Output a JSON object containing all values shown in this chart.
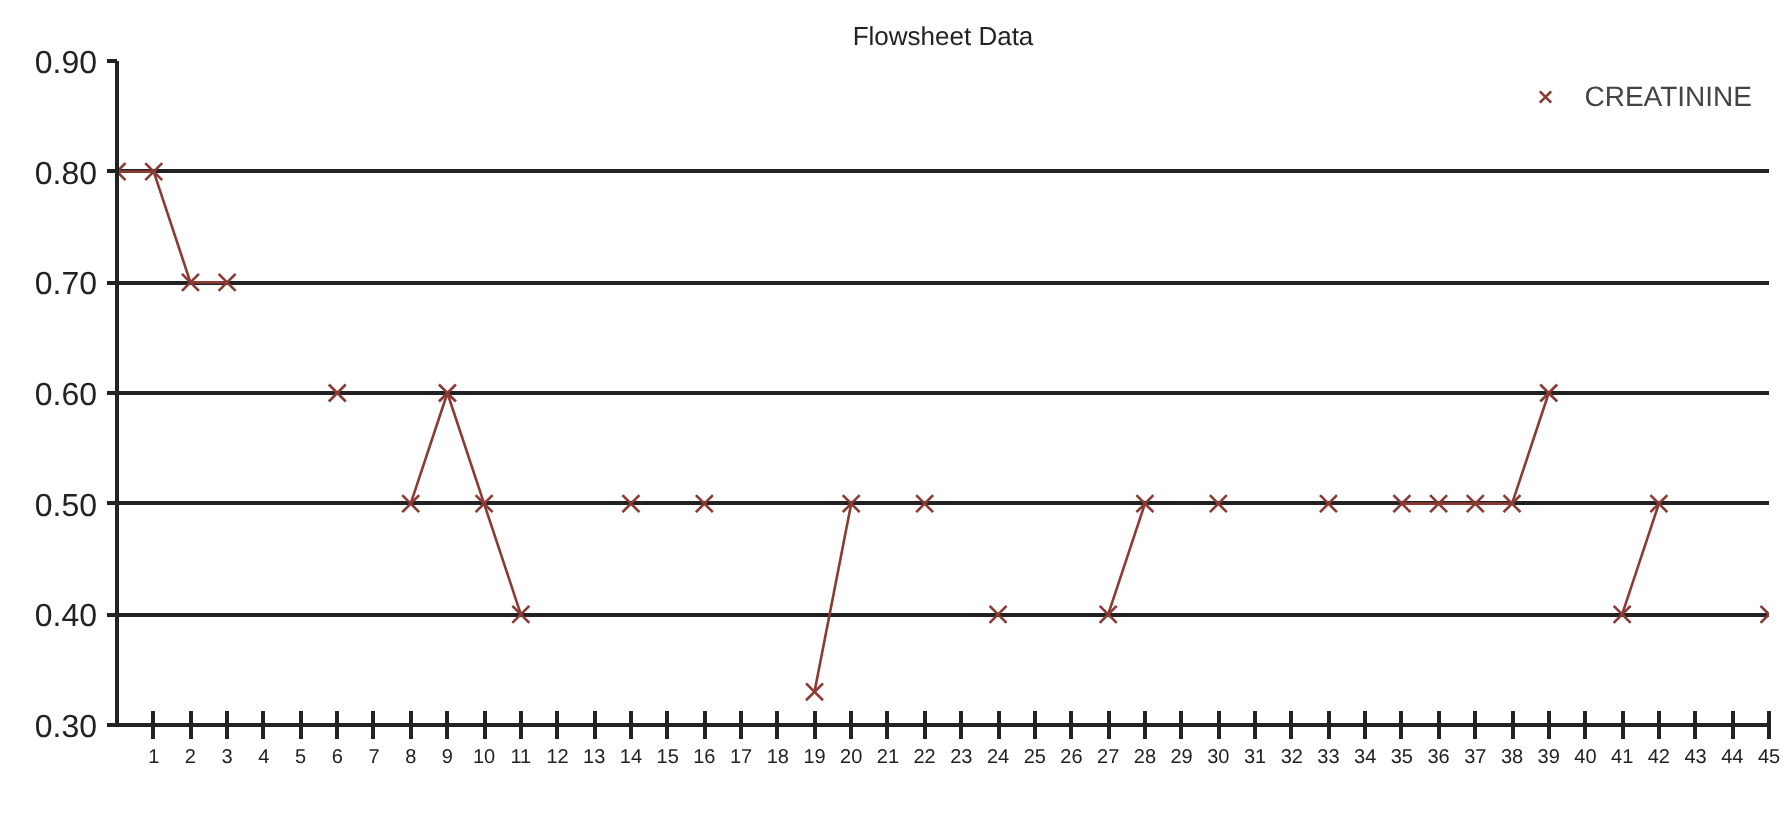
{
  "chart_data": {
    "type": "line",
    "title": "Flowsheet Data",
    "x": [
      0,
      1,
      2,
      3,
      4,
      5,
      6,
      7,
      8,
      9,
      10,
      11,
      12,
      13,
      14,
      15,
      16,
      17,
      18,
      19,
      20,
      21,
      22,
      23,
      24,
      25,
      26,
      27,
      28,
      29,
      30,
      31,
      32,
      33,
      34,
      35,
      36,
      37,
      38,
      39,
      40,
      41,
      42,
      43,
      44,
      45
    ],
    "series": [
      {
        "name": "CREATININE",
        "color": "#8b3a34",
        "values": [
          0.8,
          0.8,
          0.7,
          0.7,
          null,
          null,
          0.6,
          null,
          0.5,
          0.6,
          0.5,
          0.4,
          null,
          null,
          0.5,
          null,
          0.5,
          null,
          null,
          0.33,
          0.5,
          null,
          0.5,
          null,
          0.4,
          null,
          null,
          0.4,
          0.5,
          null,
          0.5,
          null,
          null,
          0.5,
          null,
          0.5,
          0.5,
          0.5,
          0.5,
          0.6,
          null,
          0.4,
          0.5,
          null,
          null,
          0.4
        ]
      }
    ],
    "xlim": [
      0,
      45
    ],
    "xticks": [
      1,
      2,
      3,
      4,
      5,
      6,
      7,
      8,
      9,
      10,
      11,
      12,
      13,
      14,
      15,
      16,
      17,
      18,
      19,
      20,
      21,
      22,
      23,
      24,
      25,
      26,
      27,
      28,
      29,
      30,
      31,
      32,
      33,
      34,
      35,
      36,
      37,
      38,
      39,
      40,
      41,
      42,
      43,
      44,
      45
    ],
    "ylim": [
      0.3,
      0.9
    ],
    "yticks": [
      {
        "value": 0.3,
        "label": "0.30"
      },
      {
        "value": 0.4,
        "label": "0.40"
      },
      {
        "value": 0.5,
        "label": "0.50"
      },
      {
        "value": 0.6,
        "label": "0.60"
      },
      {
        "value": 0.7,
        "label": "0.70"
      },
      {
        "value": 0.8,
        "label": "0.80"
      },
      {
        "value": 0.9,
        "label": "0.90"
      }
    ],
    "grid": "y",
    "legend": "top right",
    "marker": "cross",
    "line_style": "solid"
  }
}
